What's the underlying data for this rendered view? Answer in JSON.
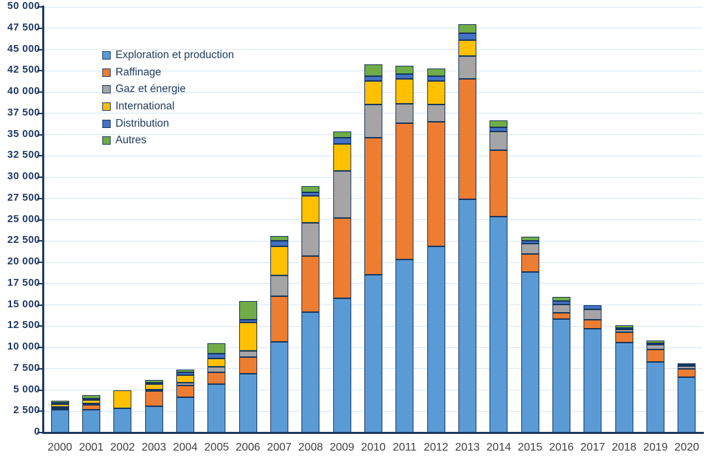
{
  "chart_data": {
    "type": "bar",
    "stacked": true,
    "title": "",
    "xlabel": "",
    "ylabel": "",
    "ylim": [
      0,
      50000
    ],
    "ytick_step": 2500,
    "ytick_labels": [
      "0",
      "2 500",
      "5 000",
      "7 500",
      "10 000",
      "12 500",
      "15 000",
      "17 500",
      "20 000",
      "22 500",
      "25 000",
      "27 500",
      "30 000",
      "32 500",
      "35 000",
      "37 500",
      "40 000",
      "42 500",
      "45 000",
      "47 500",
      "50 000"
    ],
    "grid": true,
    "legend_position": "top-left-inside",
    "categories": [
      "2000",
      "2001",
      "2002",
      "2003",
      "2004",
      "2005",
      "2006",
      "2007",
      "2008",
      "2009",
      "2010",
      "2011",
      "2012",
      "2013",
      "2014",
      "2015",
      "2016",
      "2017",
      "2018",
      "2019",
      "2020"
    ],
    "series": [
      {
        "name": "Exploration et production",
        "color": "#5b9bd5",
        "values": [
          2700,
          2650,
          2850,
          3050,
          4150,
          5700,
          6900,
          10650,
          14150,
          15800,
          18500,
          20300,
          21850,
          27400,
          25400,
          18900,
          13300,
          12200,
          10600,
          8300,
          6500
        ]
      },
      {
        "name": "Raffinage",
        "color": "#ed7d31",
        "values": [
          100,
          550,
          0,
          1750,
          1350,
          1400,
          1950,
          5400,
          6550,
          9400,
          16100,
          16000,
          14650,
          14150,
          7800,
          2100,
          750,
          1050,
          1250,
          1450,
          1000
        ]
      },
      {
        "name": "Gaz et énergie",
        "color": "#a5a5a5",
        "values": [
          100,
          200,
          0,
          150,
          300,
          650,
          700,
          2400,
          3900,
          5500,
          3900,
          2250,
          2000,
          2650,
          2200,
          1200,
          1000,
          1250,
          350,
          600,
          300
        ]
      },
      {
        "name": "International",
        "color": "#ffc000",
        "values": [
          350,
          400,
          2100,
          650,
          900,
          1000,
          3350,
          3400,
          3200,
          3150,
          2800,
          2900,
          2800,
          1900,
          0,
          0,
          0,
          0,
          0,
          0,
          0
        ]
      },
      {
        "name": "Distribution",
        "color": "#4472c4",
        "values": [
          50,
          50,
          0,
          150,
          300,
          550,
          350,
          650,
          400,
          700,
          550,
          600,
          600,
          800,
          500,
          350,
          400,
          450,
          100,
          100,
          100
        ]
      },
      {
        "name": "Autres",
        "color": "#70ad47",
        "values": [
          250,
          400,
          0,
          350,
          300,
          1250,
          2200,
          600,
          700,
          750,
          1350,
          1000,
          900,
          1050,
          800,
          450,
          450,
          0,
          350,
          350,
          200
        ]
      }
    ],
    "colors": {
      "axis": "#1f3864",
      "gridline": "#d6e6f4",
      "y_label_text": "#1f3864",
      "x_label_text": "#3f3f3f",
      "legend_text": "#203a5c",
      "bar_border": "#17375e",
      "background": "#ffffff"
    }
  }
}
